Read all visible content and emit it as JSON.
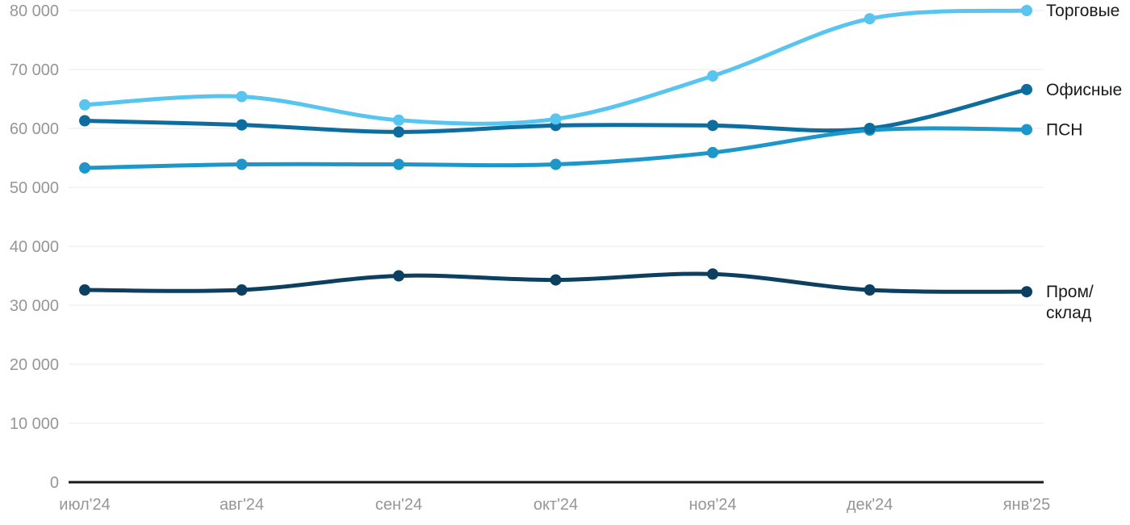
{
  "chart_data": {
    "type": "line",
    "categories": [
      "июл'24",
      "авг'24",
      "сен'24",
      "окт'24",
      "ноя'24",
      "дек'24",
      "янв'25"
    ],
    "series": [
      {
        "name": "Торговые",
        "color": "#57C5F0",
        "values": [
          64000,
          65400,
          61400,
          61600,
          68900,
          78600,
          80000
        ],
        "label_lines": [
          "Торговые"
        ]
      },
      {
        "name": "Офисные",
        "color": "#0D6D9E",
        "values": [
          61300,
          60600,
          59400,
          60500,
          60500,
          60000,
          66600
        ],
        "label_lines": [
          "Офисные"
        ]
      },
      {
        "name": "ПСН",
        "color": "#1D97C9",
        "values": [
          53300,
          53900,
          53900,
          53900,
          55900,
          59700,
          59800
        ],
        "label_lines": [
          "ПСН"
        ]
      },
      {
        "name": "Пром/склад",
        "color": "#0D3F61",
        "values": [
          32600,
          32600,
          35000,
          34300,
          35300,
          32600,
          32300
        ],
        "label_lines": [
          "Пром/",
          "склад"
        ]
      }
    ],
    "y_ticks": [
      0,
      10000,
      20000,
      30000,
      40000,
      50000,
      60000,
      70000,
      80000
    ],
    "y_tick_labels": [
      "0",
      "10 000",
      "20 000",
      "30 000",
      "40 000",
      "50 000",
      "60 000",
      "70 000",
      "80 000"
    ],
    "ylim": [
      0,
      80000
    ],
    "xlabel": "",
    "ylabel": "",
    "title": "",
    "grid": true,
    "legend_position": "right-of-line-ends",
    "line_smoothing": "spline",
    "marker": "circle"
  },
  "styles": {
    "background": "#FFFFFF",
    "grid_color": "#E8E8E8",
    "axis_color": "#1A1A1A",
    "tick_color": "#969696",
    "label_color": "#1A1A1A"
  }
}
